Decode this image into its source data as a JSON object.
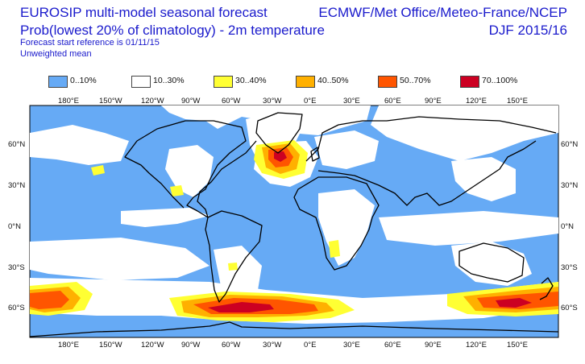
{
  "header": {
    "title_line1": "EUROSIP multi-model seasonal forecast",
    "title_line2": "Prob(lowest 20% of climatology) - 2m temperature",
    "forecast_ref": "Forecast start reference is 01/11/15",
    "weighting": "Unweighted mean",
    "centres": "ECMWF/Met Office/Meteo-France/NCEP",
    "season": "DJF 2015/16"
  },
  "legend": [
    {
      "label": "0..10%",
      "color": "#66aaf5"
    },
    {
      "label": "10..30%",
      "color": "#ffffff"
    },
    {
      "label": "30..40%",
      "color": "#ffff33"
    },
    {
      "label": "40..50%",
      "color": "#ffb000"
    },
    {
      "label": "50..70%",
      "color": "#ff5500"
    },
    {
      "label": "70..100%",
      "color": "#cc0022"
    }
  ],
  "axes": {
    "lon_labels": [
      "180°E",
      "150°W",
      "120°W",
      "90°W",
      "60°W",
      "30°W",
      "0°E",
      "30°E",
      "60°E",
      "90°E",
      "120°E",
      "150°E"
    ],
    "lat_labels": [
      "60°N",
      "30°N",
      "0°N",
      "30°S",
      "60°S"
    ]
  },
  "colors": {
    "text": "#1a1acc",
    "map_background": "#66aaf5",
    "coastline": "#000000"
  }
}
